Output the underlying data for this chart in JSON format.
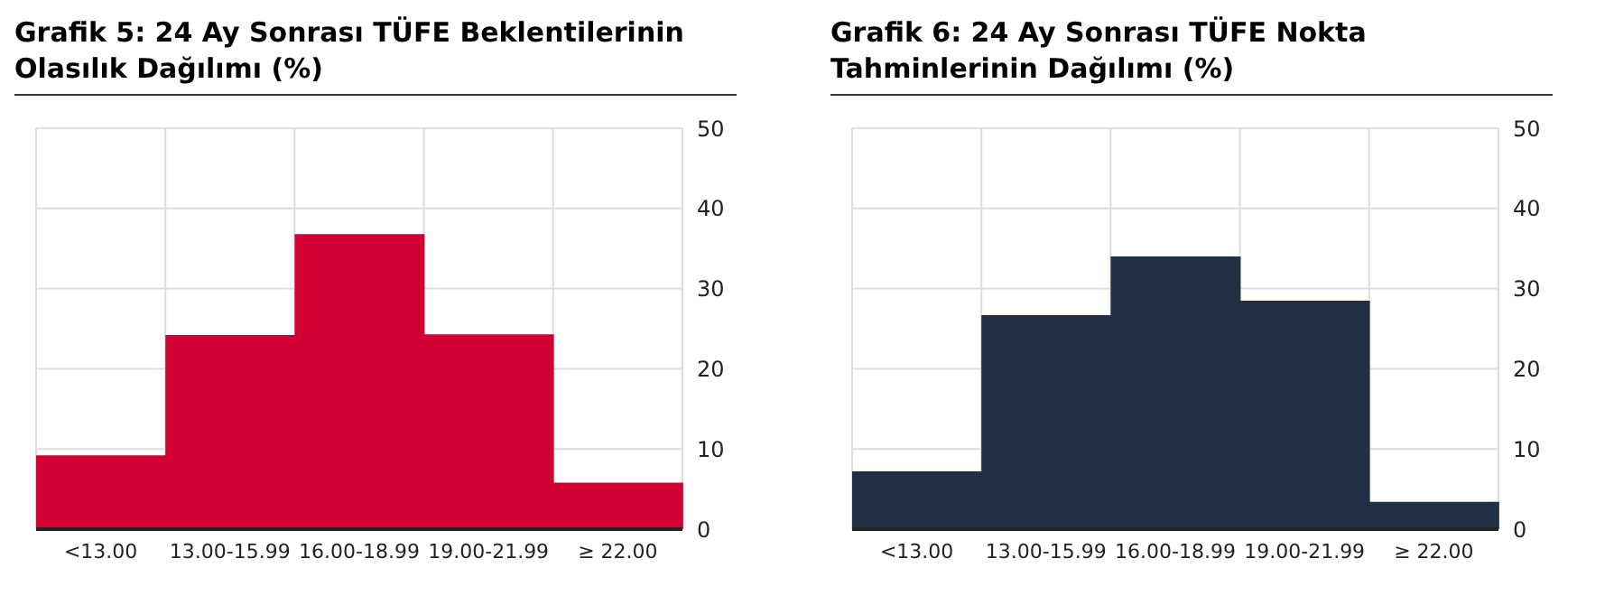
{
  "chart_data": [
    {
      "type": "bar",
      "title": "Grafik 5: 24 Ay Sonrası TÜFE Beklentilerinin Olasılık Dağılımı (%)",
      "categories": [
        "<13.00",
        "13.00-15.99",
        "16.00-18.99",
        "19.00-21.99",
        "≥ 22.00"
      ],
      "values": [
        9.2,
        24.2,
        36.8,
        24.3,
        5.8
      ],
      "color": "#d20032",
      "ylim": [
        0,
        50
      ],
      "yticks": [
        0,
        10,
        20,
        30,
        40,
        50
      ],
      "grid": true
    },
    {
      "type": "bar",
      "title": "Grafik 6: 24 Ay Sonrası TÜFE Nokta Tahminlerinin Dağılımı (%)",
      "categories": [
        "<13.00",
        "13.00-15.99",
        "16.00-18.99",
        "19.00-21.99",
        "≥ 22.00"
      ],
      "values": [
        7.2,
        26.7,
        34.0,
        28.5,
        3.4
      ],
      "color": "#1f3044",
      "ylim": [
        0,
        50
      ],
      "yticks": [
        0,
        10,
        20,
        30,
        40,
        50
      ],
      "grid": true
    }
  ]
}
